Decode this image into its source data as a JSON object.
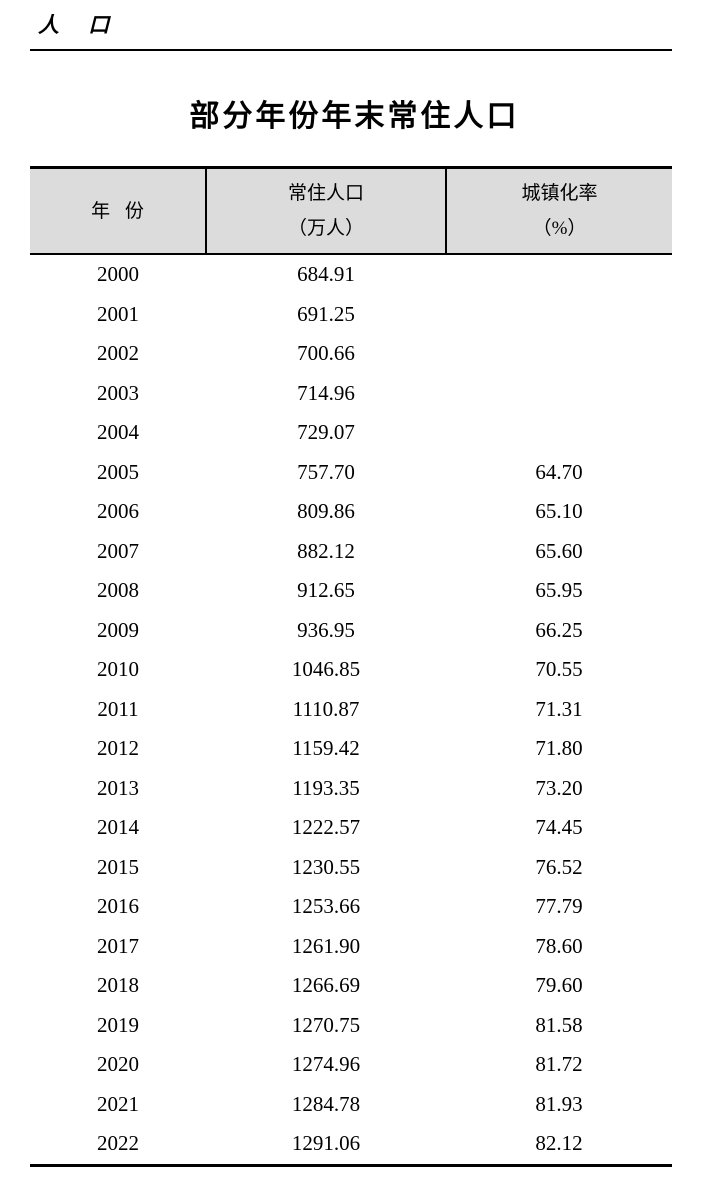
{
  "header": {
    "section_label": "人 口"
  },
  "title": "部分年份年末常住人口",
  "colors": {
    "table_header_background": "#dcdcdc",
    "rule_color": "#000000",
    "text_color": "#000000"
  },
  "table": {
    "columns": [
      {
        "line1": "年 份",
        "line2": ""
      },
      {
        "line1": "常住人口",
        "line2": "（万人）"
      },
      {
        "line1": "城镇化率",
        "line2": "（%）"
      }
    ],
    "rows": [
      {
        "year": "2000",
        "population": "684.91",
        "rate": ""
      },
      {
        "year": "2001",
        "population": "691.25",
        "rate": ""
      },
      {
        "year": "2002",
        "population": "700.66",
        "rate": ""
      },
      {
        "year": "2003",
        "population": "714.96",
        "rate": ""
      },
      {
        "year": "2004",
        "population": "729.07",
        "rate": ""
      },
      {
        "year": "2005",
        "population": "757.70",
        "rate": "64.70"
      },
      {
        "year": "2006",
        "population": "809.86",
        "rate": "65.10"
      },
      {
        "year": "2007",
        "population": "882.12",
        "rate": "65.60"
      },
      {
        "year": "2008",
        "population": "912.65",
        "rate": "65.95"
      },
      {
        "year": "2009",
        "population": "936.95",
        "rate": "66.25"
      },
      {
        "year": "2010",
        "population": "1046.85",
        "rate": "70.55"
      },
      {
        "year": "2011",
        "population": "1110.87",
        "rate": "71.31"
      },
      {
        "year": "2012",
        "population": "1159.42",
        "rate": "71.80"
      },
      {
        "year": "2013",
        "population": "1193.35",
        "rate": "73.20"
      },
      {
        "year": "2014",
        "population": "1222.57",
        "rate": "74.45"
      },
      {
        "year": "2015",
        "population": "1230.55",
        "rate": "76.52"
      },
      {
        "year": "2016",
        "population": "1253.66",
        "rate": "77.79"
      },
      {
        "year": "2017",
        "population": "1261.90",
        "rate": "78.60"
      },
      {
        "year": "2018",
        "population": "1266.69",
        "rate": "79.60"
      },
      {
        "year": "2019",
        "population": "1270.75",
        "rate": "81.58"
      },
      {
        "year": "2020",
        "population": "1274.96",
        "rate": "81.72"
      },
      {
        "year": "2021",
        "population": "1284.78",
        "rate": "81.93"
      },
      {
        "year": "2022",
        "population": "1291.06",
        "rate": "82.12"
      }
    ]
  }
}
